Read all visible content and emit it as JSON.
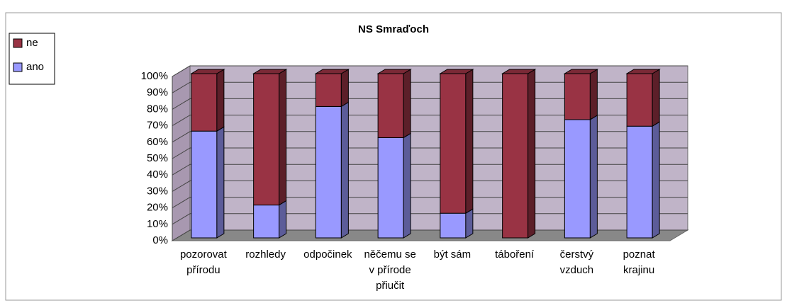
{
  "chart_data": {
    "type": "bar3d_stacked100",
    "title": "NS Smraďoch",
    "categories": [
      "pozorovat přírodu",
      "rozhledy",
      "odpočinek",
      "něčemu se v přírode přiučit",
      "být sám",
      "táboření",
      "čerstvý vzduch",
      "poznat krajinu"
    ],
    "series": [
      {
        "name": "ano",
        "color": "#9999ff",
        "values": [
          65,
          20,
          80,
          61,
          15,
          0,
          72,
          68
        ]
      },
      {
        "name": "ne",
        "color": "#993344",
        "values": [
          35,
          80,
          20,
          39,
          85,
          100,
          28,
          32
        ]
      }
    ],
    "ylim": [
      0,
      100
    ],
    "yticks": [
      {
        "value": 0,
        "label": "0%"
      },
      {
        "value": 10,
        "label": "10%"
      },
      {
        "value": 20,
        "label": "20%"
      },
      {
        "value": 30,
        "label": "30%"
      },
      {
        "value": 40,
        "label": "40%"
      },
      {
        "value": 50,
        "label": "50%"
      },
      {
        "value": 60,
        "label": "60%"
      },
      {
        "value": 70,
        "label": "70%"
      },
      {
        "value": 80,
        "label": "80%"
      },
      {
        "value": 90,
        "label": "90%"
      },
      {
        "value": 100,
        "label": "100%"
      }
    ],
    "grid": true,
    "legend": "top-left"
  }
}
